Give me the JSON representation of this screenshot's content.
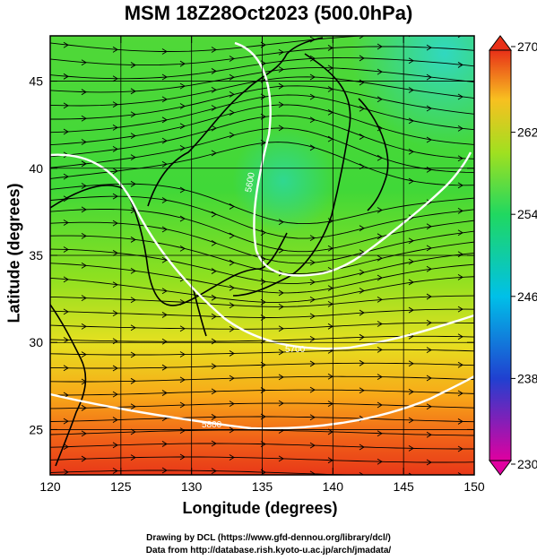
{
  "title": "MSM 18Z28Oct2023 (500.0hPa)",
  "axes": {
    "xlabel": "Longitude (degrees)",
    "ylabel": "Latitude  (degrees)",
    "xticks": [
      "120",
      "125",
      "130",
      "135",
      "140",
      "145",
      "150"
    ],
    "yticks": [
      "25",
      "30",
      "35",
      "40",
      "45"
    ],
    "xlim": [
      120,
      150
    ],
    "ylim": [
      22.4,
      47.6
    ]
  },
  "colorbar": {
    "ticks": [
      "270",
      "262",
      "254",
      "246",
      "238",
      "230"
    ],
    "range": [
      230,
      270
    ],
    "colors": [
      "#e6007a",
      "#3050c8",
      "#00c8e0",
      "#28d850",
      "#80e020",
      "#f0e020",
      "#f08018",
      "#e83018"
    ]
  },
  "contours": {
    "labels": [
      "5800",
      "5700",
      "5600"
    ]
  },
  "credits": {
    "line1": "Drawing by DCL (https://www.gfd-dennou.org/library/dcl/)",
    "line2": "Data from http://database.rish.kyoto-u.ac.jp/arch/jmadata/"
  }
}
